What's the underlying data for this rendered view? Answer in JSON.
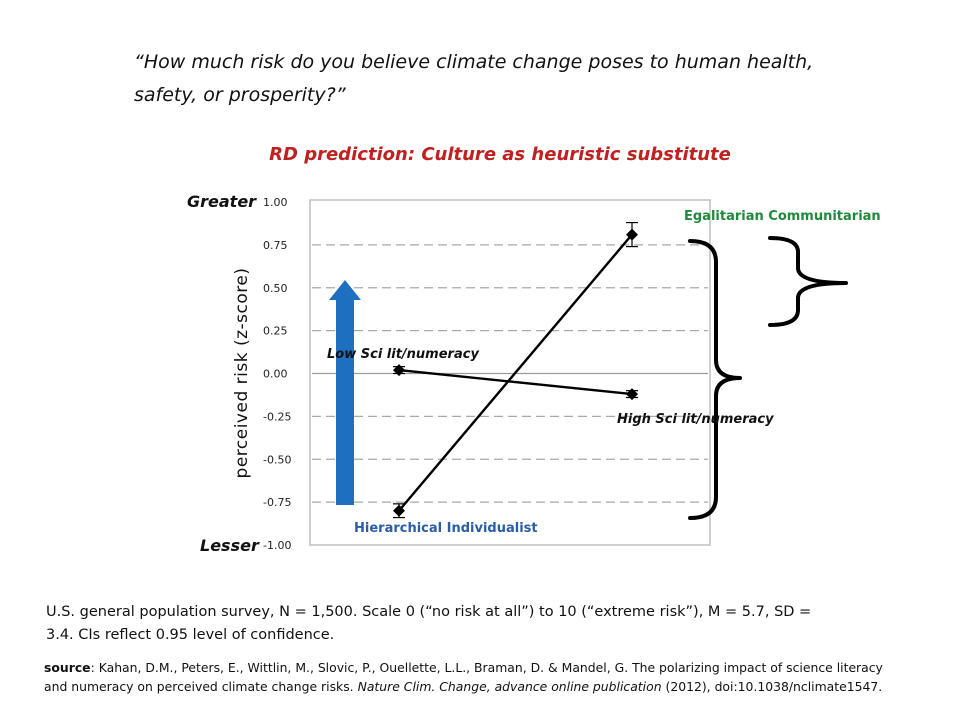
{
  "question": "“How much risk do you believe climate change poses to human health, safety, or prosperity?”",
  "axis_end_labels": {
    "greater": "Greater",
    "lesser": "Lesser"
  },
  "chart_data": {
    "type": "line",
    "title": "RD prediction: Culture as heuristic substitute",
    "ylabel": "perceived risk (z-score)",
    "xlabel": "",
    "ylim": [
      -1.0,
      1.0
    ],
    "y_ticks": [
      "1.00",
      "0.75",
      "0.50",
      "0.25",
      "0.00",
      "-0.25",
      "-0.50",
      "-0.75",
      "-1.00"
    ],
    "x_positions": [
      "Low Sci lit/numeracy",
      "High Sci lit/numeracy"
    ],
    "gridlines": "dashed horizontal",
    "series": [
      {
        "name": "Hierarchical Individualist",
        "values": [
          -0.8,
          0.81
        ],
        "error": [
          0.04,
          0.07
        ],
        "color": "#000000"
      },
      {
        "name": "Egalitarian Communitarian",
        "values": [
          0.02,
          -0.12
        ],
        "error": [
          0.02,
          0.02
        ],
        "color": "#000000"
      }
    ],
    "annotations": {
      "low_label": "Low Sci lit/numeracy",
      "high_label": "High Sci lit/numeracy",
      "hier_label": "Hierarchical Individualist",
      "egal_label": "Egalitarian Communitarian"
    }
  },
  "arrow_color": "#1f6fc0",
  "footnote": "U.S. general population survey, N = 1,500.  Scale 0 (“no risk at all”) to 10 (“extreme risk”), M = 5.7, SD = 3.4. CIs reflect 0.95 level of confidence.",
  "source": {
    "label": "source",
    "text_a": ": Kahan, D.M., Peters, E., Wittlin, M., Slovic, P., Ouellette, L.L., Braman, D. & Mandel, G. The polarizing impact of science literacy and numeracy on perceived climate change risks. ",
    "journal": "Nature Clim. Change,  advance online publication",
    "text_b": " (2012), doi:10.1038/nclimate1547."
  }
}
